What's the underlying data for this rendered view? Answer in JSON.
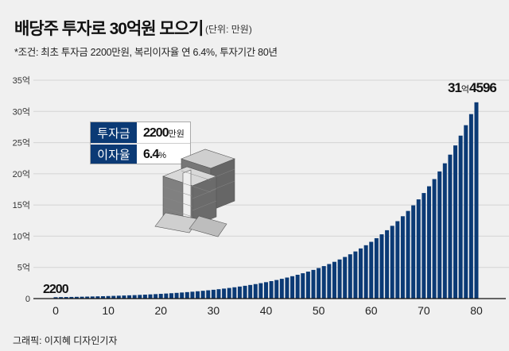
{
  "title": "배당주 투자로 30억원 모으기",
  "unit_note": "(단위: 만원)",
  "condition": "*조건: 최초 투자금 2200만원, 복리이자율 연 6.4%, 투자기간 80년",
  "credit": "그래픽: 이지혜 디자인기자",
  "info_table": {
    "rows": [
      {
        "label": "투자금",
        "value": "2200",
        "unit": "만원"
      },
      {
        "label": "이자율",
        "value": "6.4",
        "unit": "%"
      }
    ]
  },
  "illustration": "money-stack-icon",
  "colors": {
    "bar": "#0b3a75",
    "background": "#f0f0f0",
    "grid": "#d4d4d4"
  },
  "chart_data": {
    "type": "bar",
    "title": "배당주 투자로 30억원 모으기",
    "xlabel": "",
    "ylabel": "",
    "y_unit": "만원",
    "x": [
      0,
      1,
      2,
      3,
      4,
      5,
      6,
      7,
      8,
      9,
      10,
      11,
      12,
      13,
      14,
      15,
      16,
      17,
      18,
      19,
      20,
      21,
      22,
      23,
      24,
      25,
      26,
      27,
      28,
      29,
      30,
      31,
      32,
      33,
      34,
      35,
      36,
      37,
      38,
      39,
      40,
      41,
      42,
      43,
      44,
      45,
      46,
      47,
      48,
      49,
      50,
      51,
      52,
      53,
      54,
      55,
      56,
      57,
      58,
      59,
      60,
      61,
      62,
      63,
      64,
      65,
      66,
      67,
      68,
      69,
      70,
      71,
      72,
      73,
      74,
      75,
      76,
      77,
      78,
      79,
      80
    ],
    "values": [
      2200,
      2341,
      2491,
      2650,
      2820,
      3000,
      3192,
      3396,
      3614,
      3845,
      4091,
      4353,
      4632,
      4928,
      5243,
      5579,
      5936,
      6316,
      6720,
      7150,
      7608,
      8095,
      8613,
      9164,
      9750,
      10374,
      11038,
      11745,
      12497,
      13296,
      14147,
      15053,
      16016,
      17041,
      18132,
      19292,
      20527,
      21841,
      23238,
      24726,
      26308,
      27992,
      29783,
      31689,
      33717,
      35875,
      38171,
      40614,
      43214,
      45979,
      48922,
      52053,
      55384,
      58929,
      62700,
      66713,
      70983,
      75526,
      80359,
      85502,
      90974,
      96797,
      102992,
      109583,
      116597,
      124059,
      131999,
      140447,
      149435,
      158999,
      169175,
      180002,
      191522,
      203780,
      216821,
      230698,
      245463,
      261172,
      277887,
      295672,
      314596
    ],
    "x_ticks": [
      0,
      10,
      20,
      30,
      40,
      50,
      60,
      70,
      80
    ],
    "x_tick_labels": [
      "0",
      "10",
      "20",
      "30",
      "40",
      "50",
      "60",
      "70",
      "80"
    ],
    "y_ticks": [
      0,
      50000,
      100000,
      150000,
      200000,
      250000,
      300000,
      350000
    ],
    "y_tick_labels": [
      "0",
      "5억",
      "10억",
      "15억",
      "20억",
      "25억",
      "30억",
      "35억"
    ],
    "ylim": [
      0,
      350000
    ],
    "xlim": [
      0,
      80
    ],
    "grid": true,
    "annotations": {
      "start": "2200",
      "end": {
        "eok": "31",
        "eok_unit": "억",
        "man": "4596"
      }
    }
  }
}
